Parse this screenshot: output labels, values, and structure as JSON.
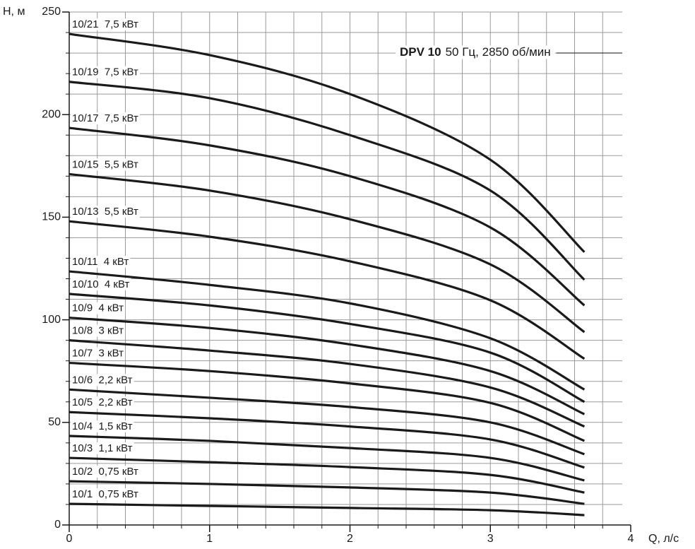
{
  "chart_data": {
    "type": "line",
    "y_label": "H, м",
    "x_label": "Q, л/с",
    "annotation_bold": "DPV 10",
    "annotation": "50 Гц, 2850 об/мин",
    "x": [
      0,
      1,
      2,
      3,
      3.67
    ],
    "xlim": [
      0,
      4
    ],
    "xticks": [
      0,
      1,
      2,
      3,
      4
    ],
    "ylim": [
      0,
      250
    ],
    "yticks": [
      0,
      50,
      100,
      150,
      200,
      250
    ],
    "grid": {
      "x_step": 0.2,
      "y_step": 10
    },
    "color": "#1a1a1a",
    "series": [
      {
        "name": "10/21  7,5 кВт",
        "values": [
          239.3,
          229,
          210,
          178,
          133
        ]
      },
      {
        "name": "10/19  7,5 кВт",
        "values": [
          216,
          208,
          190,
          163,
          119.5
        ]
      },
      {
        "name": "10/17  7,5 кВт",
        "values": [
          193.5,
          185,
          170,
          145,
          107
        ]
      },
      {
        "name": "10/15  5,5 кВт",
        "values": [
          171,
          163,
          149,
          127,
          94
        ]
      },
      {
        "name": "10/13  5,5 кВт",
        "values": [
          148,
          140.5,
          128.5,
          109.5,
          81
        ]
      },
      {
        "name": "10/11  4 кВт",
        "values": [
          123.6,
          117,
          108,
          91,
          66
        ]
      },
      {
        "name": "10/10  4 кВт",
        "values": [
          112.6,
          107,
          98,
          84,
          60
        ]
      },
      {
        "name": "10/9  4 кВт",
        "values": [
          101,
          96,
          88,
          75,
          54
        ]
      },
      {
        "name": "10/8  3 кВт",
        "values": [
          90,
          85,
          78.5,
          67,
          48
        ]
      },
      {
        "name": "10/7  3 кВт",
        "values": [
          79,
          75,
          69,
          59.5,
          41
        ]
      },
      {
        "name": "10/6  2,2 кВт",
        "values": [
          66,
          62,
          57.5,
          50,
          34.5
        ]
      },
      {
        "name": "10/5  2,2 кВт",
        "values": [
          55,
          52,
          48,
          41.7,
          28
        ]
      },
      {
        "name": "10/4  1,5 кВт",
        "values": [
          43.4,
          41,
          37.5,
          32.7,
          21.7
        ]
      },
      {
        "name": "10/3  1,1 кВт",
        "values": [
          32.7,
          30.6,
          28.2,
          24.4,
          15.8
        ]
      },
      {
        "name": "10/2  0,75 кВт",
        "values": [
          21.3,
          20,
          18.3,
          15.8,
          10.3
        ]
      },
      {
        "name": "10/1  0,75 кВт",
        "values": [
          10.3,
          9.3,
          8.3,
          7.2,
          4.8
        ]
      }
    ]
  }
}
